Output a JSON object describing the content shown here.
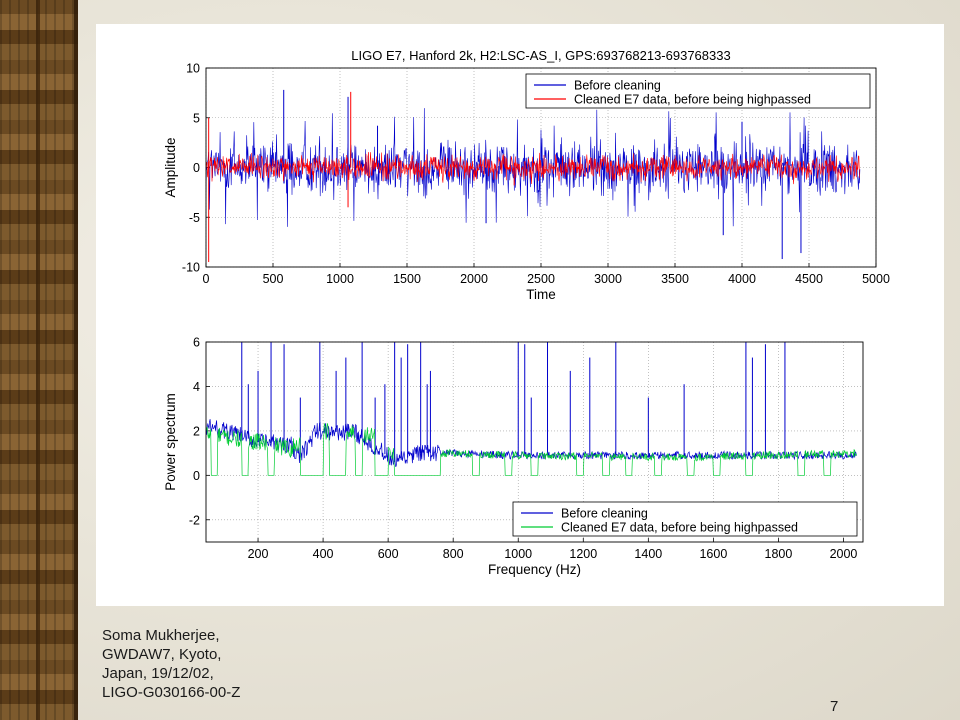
{
  "slide": {
    "footer_lines": [
      "Soma Mukherjee,",
      "GWDAW7, Kyoto,",
      "Japan, 19/12/02,",
      "LIGO-G030166-00-Z"
    ],
    "page_number": "7"
  },
  "chart_data": [
    {
      "type": "line",
      "title": "LIGO E7, Hanford 2k, H2:LSC-AS_I, GPS:693768213-693768333",
      "xlabel": "Time",
      "ylabel": "Amplitude",
      "xlim": [
        0,
        5000
      ],
      "ylim": [
        -10,
        10
      ],
      "xticks": [
        0,
        500,
        1000,
        1500,
        2000,
        2500,
        3000,
        3500,
        4000,
        4500,
        5000
      ],
      "yticks": [
        -10,
        -5,
        0,
        5,
        10
      ],
      "grid": true,
      "legend_position": "top-right",
      "x_extent": [
        0,
        4880
      ],
      "series": [
        {
          "name": "Before cleaning",
          "color": "#0000cc",
          "typical_envelope": [
            -3.5,
            3.5
          ],
          "spikes": [
            [
              580,
              7.8
            ],
            [
              1060,
              7.1
            ],
            [
              1280,
              4.2
            ],
            [
              4000,
              4.6
            ],
            [
              4300,
              -9.2
            ],
            [
              4440,
              -8.6
            ],
            [
              3860,
              -6.8
            ],
            [
              2090,
              -5.6
            ]
          ]
        },
        {
          "name": "Cleaned E7 data, before being highpassed",
          "color": "#ff0000",
          "typical_envelope": [
            -1.6,
            1.6
          ],
          "spikes": [
            [
              20,
              5.0
            ],
            [
              20,
              -9.5
            ],
            [
              1080,
              7.6
            ],
            [
              1060,
              -4.0
            ],
            [
              2300,
              -1.8
            ]
          ]
        }
      ]
    },
    {
      "type": "line",
      "title": "",
      "xlabel": "Frequency (Hz)",
      "ylabel": "Power spectrum",
      "xlim": [
        40,
        2060
      ],
      "ylim": [
        -3,
        6
      ],
      "xticks": [
        200,
        400,
        600,
        800,
        1000,
        1200,
        1400,
        1600,
        1800,
        2000
      ],
      "yticks": [
        -2,
        0,
        2,
        4,
        6
      ],
      "grid": true,
      "legend_position": "bottom-right",
      "x_extent": [
        40,
        2040
      ],
      "series": [
        {
          "name": "Before cleaning",
          "color": "#0000cc",
          "baseline": [
            [
              40,
              2.2
            ],
            [
              100,
              2.0
            ],
            [
              200,
              1.5
            ],
            [
              300,
              1.4
            ],
            [
              330,
              0.8
            ],
            [
              380,
              2.0
            ],
            [
              500,
              1.9
            ],
            [
              560,
              1.3
            ],
            [
              620,
              0.6
            ],
            [
              700,
              1.0
            ],
            [
              760,
              1.0
            ],
            [
              1000,
              0.9
            ],
            [
              1500,
              0.9
            ],
            [
              2040,
              0.9
            ]
          ],
          "spikes": [
            150,
            170,
            200,
            240,
            280,
            330,
            390,
            440,
            470,
            520,
            560,
            590,
            620,
            640,
            660,
            700,
            720,
            730,
            1000,
            1020,
            1040,
            1090,
            1160,
            1220,
            1300,
            1400,
            1510,
            1700,
            1720,
            1760,
            1820
          ]
        },
        {
          "name": "Cleaned E7 data, before being highpassed",
          "color": "#00cc33",
          "baseline": [
            [
              40,
              1.9
            ],
            [
              100,
              1.7
            ],
            [
              200,
              1.5
            ],
            [
              300,
              1.2
            ],
            [
              400,
              2.0
            ],
            [
              560,
              1.8
            ],
            [
              620,
              0.8
            ],
            [
              760,
              1.0
            ],
            [
              1000,
              0.9
            ],
            [
              1500,
              0.8
            ],
            [
              2040,
              1.0
            ]
          ],
          "dropouts": [
            [
              55,
              75
            ],
            [
              150,
              170
            ],
            [
              230,
              250
            ],
            [
              330,
              400
            ],
            [
              420,
              470
            ],
            [
              500,
              520
            ],
            [
              560,
              600
            ],
            [
              620,
              760
            ],
            [
              860,
              880
            ],
            [
              960,
              980
            ],
            [
              1040,
              1060
            ],
            [
              1180,
              1200
            ],
            [
              1260,
              1280
            ],
            [
              1330,
              1350
            ],
            [
              1420,
              1440
            ],
            [
              1520,
              1540
            ],
            [
              1600,
              1620
            ],
            [
              1700,
              1720
            ],
            [
              1860,
              1880
            ],
            [
              1940,
              1960
            ]
          ]
        }
      ]
    }
  ]
}
